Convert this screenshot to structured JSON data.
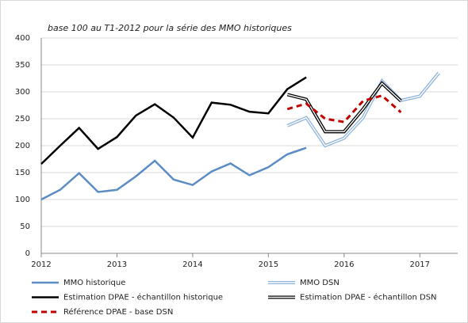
{
  "chart_data": {
    "type": "line",
    "title": "base 100 au T1-2012 pour la série des MMO historiques",
    "xlim": [
      2012,
      2017.5
    ],
    "xticks": [
      2012,
      2013,
      2014,
      2015,
      2016,
      2017
    ],
    "ylim": [
      0,
      400
    ],
    "yticks": [
      0,
      50,
      100,
      150,
      200,
      250,
      300,
      350,
      400
    ],
    "grid": true,
    "series": [
      {
        "name": "MMO historique",
        "color": "#5b8cc4",
        "style": "solid",
        "x": [
          2012,
          2012.25,
          2012.5,
          2012.75,
          2013,
          2013.25,
          2013.5,
          2013.75,
          2014,
          2014.25,
          2014.5,
          2014.75,
          2015,
          2015.25,
          2015.5
        ],
        "values": [
          100,
          118,
          149,
          114,
          118,
          143,
          172,
          137,
          127,
          152,
          167,
          145,
          160,
          184,
          196
        ]
      },
      {
        "name": "MMO DSN",
        "color": "#8fb4dc",
        "style": "double",
        "x": [
          2015.25,
          2015.5,
          2015.75,
          2016,
          2016.25,
          2016.5,
          2016.75,
          2017,
          2017.25
        ],
        "values": [
          237,
          252,
          200,
          214,
          252,
          320,
          284,
          292,
          335
        ]
      },
      {
        "name": "Estimation DPAE - échantillon historique",
        "color": "#000000",
        "style": "solid",
        "x": [
          2012,
          2012.25,
          2012.5,
          2012.75,
          2013,
          2013.25,
          2013.5,
          2013.75,
          2014,
          2014.25,
          2014.5,
          2014.75,
          2015,
          2015.25,
          2015.5
        ],
        "values": [
          166,
          200,
          233,
          194,
          216,
          256,
          277,
          252,
          215,
          280,
          276,
          263,
          260,
          305,
          327
        ]
      },
      {
        "name": "Estimation DPAE - échantillon DSN",
        "color": "#000000",
        "style": "double",
        "x": [
          2015.25,
          2015.5,
          2015.75,
          2016,
          2016.25,
          2016.5,
          2016.75
        ],
        "values": [
          295,
          286,
          226,
          226,
          268,
          316,
          283
        ]
      },
      {
        "name": "Référence DPAE - base DSN",
        "color": "#c00000",
        "style": "dashed",
        "x": [
          2015.25,
          2015.5,
          2015.75,
          2016,
          2016.25,
          2016.5,
          2016.75
        ],
        "values": [
          268,
          278,
          250,
          244,
          283,
          293,
          262
        ]
      }
    ]
  }
}
